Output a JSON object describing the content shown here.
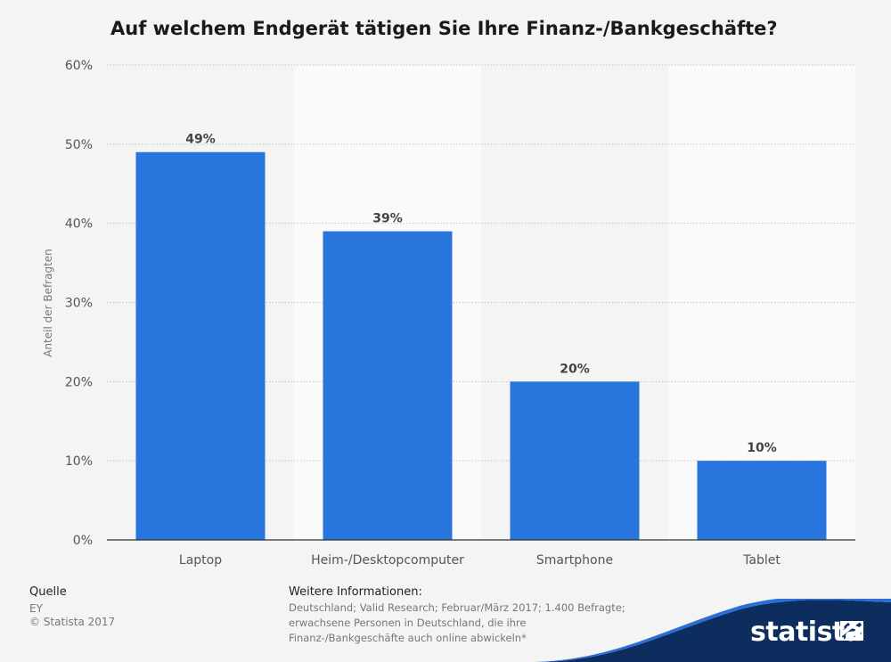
{
  "chart_data": {
    "type": "bar",
    "title": "Auf welchem Endgerät tätigen Sie Ihre Finanz-/Bankgeschäfte?",
    "categories": [
      "Laptop",
      "Heim-/Desktopcomputer",
      "Smartphone",
      "Tablet"
    ],
    "values": [
      49,
      39,
      20,
      10
    ],
    "value_labels": [
      "49%",
      "39%",
      "20%",
      "10%"
    ],
    "ylabel": "Anteil der Befragten",
    "ylim": [
      0,
      60
    ],
    "yticks": [
      "0%",
      "10%",
      "20%",
      "30%",
      "40%",
      "50%",
      "60%"
    ],
    "grid": true,
    "bar_color": "#2876dd"
  },
  "footer": {
    "source_heading": "Quelle",
    "source_value": "EY",
    "copyright": "© Statista 2017",
    "info_heading": "Weitere Informationen:",
    "info_text": "Deutschland; Valid Research; Februar/März 2017; 1.400 Befragte; erwachsene Personen in Deutschland, die ihre Finanz-/Bankgeschäfte auch online abwickeln*"
  },
  "brand": {
    "logo_text": "statista",
    "logo_icon": "statista-flag-icon",
    "accent": "#0c2d5e"
  }
}
